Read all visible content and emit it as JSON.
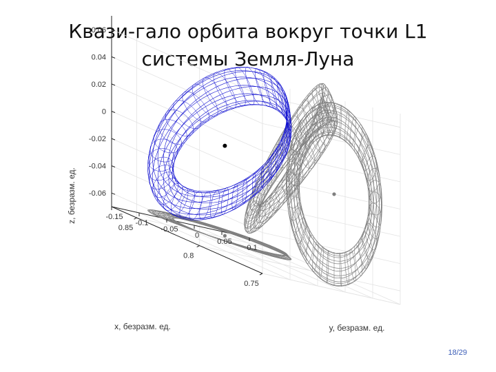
{
  "slide": {
    "title_line1": "Квази-гало орбита вокруг точки L1",
    "title_line2": "системы Земля-Луна",
    "page_number": "18/29"
  },
  "chart_data": {
    "type": "3d-line",
    "title": "",
    "axes": {
      "x": {
        "label": "x, безразм. ед.",
        "ticks": [
          "0.75",
          "0.8",
          "0.85"
        ],
        "range": [
          0.75,
          0.87
        ]
      },
      "y": {
        "label": "y, безразм. ед.",
        "ticks": [
          "-0.15",
          "-0.1",
          "-0.05",
          "0",
          "0.05",
          "0.1"
        ],
        "range": [
          -0.15,
          0.1
        ]
      },
      "z": {
        "label": "z, безразм. ед.",
        "ticks": [
          "0.06",
          "0.04",
          "0.02",
          "0",
          "-0.02",
          "-0.04",
          "-0.06"
        ],
        "range": [
          -0.07,
          0.07
        ]
      }
    },
    "grid": true,
    "series": [
      {
        "kind": "trajectory-3d",
        "color": "#1010d0",
        "center": [
          0.8369,
          -0.02,
          0.0
        ],
        "radius_y": 0.075,
        "radius_z": 0.055,
        "band": 0.012
      },
      {
        "kind": "projection-yz",
        "color": "#7f7f7f"
      },
      {
        "kind": "projection-xy",
        "color": "#7f7f7f"
      },
      {
        "kind": "projection-xz",
        "color": "#7f7f7f"
      }
    ],
    "points": [
      {
        "kind": "libration-point",
        "color": "#000000"
      },
      {
        "kind": "libration-point-projection",
        "color": "#7f7f7f"
      }
    ]
  }
}
